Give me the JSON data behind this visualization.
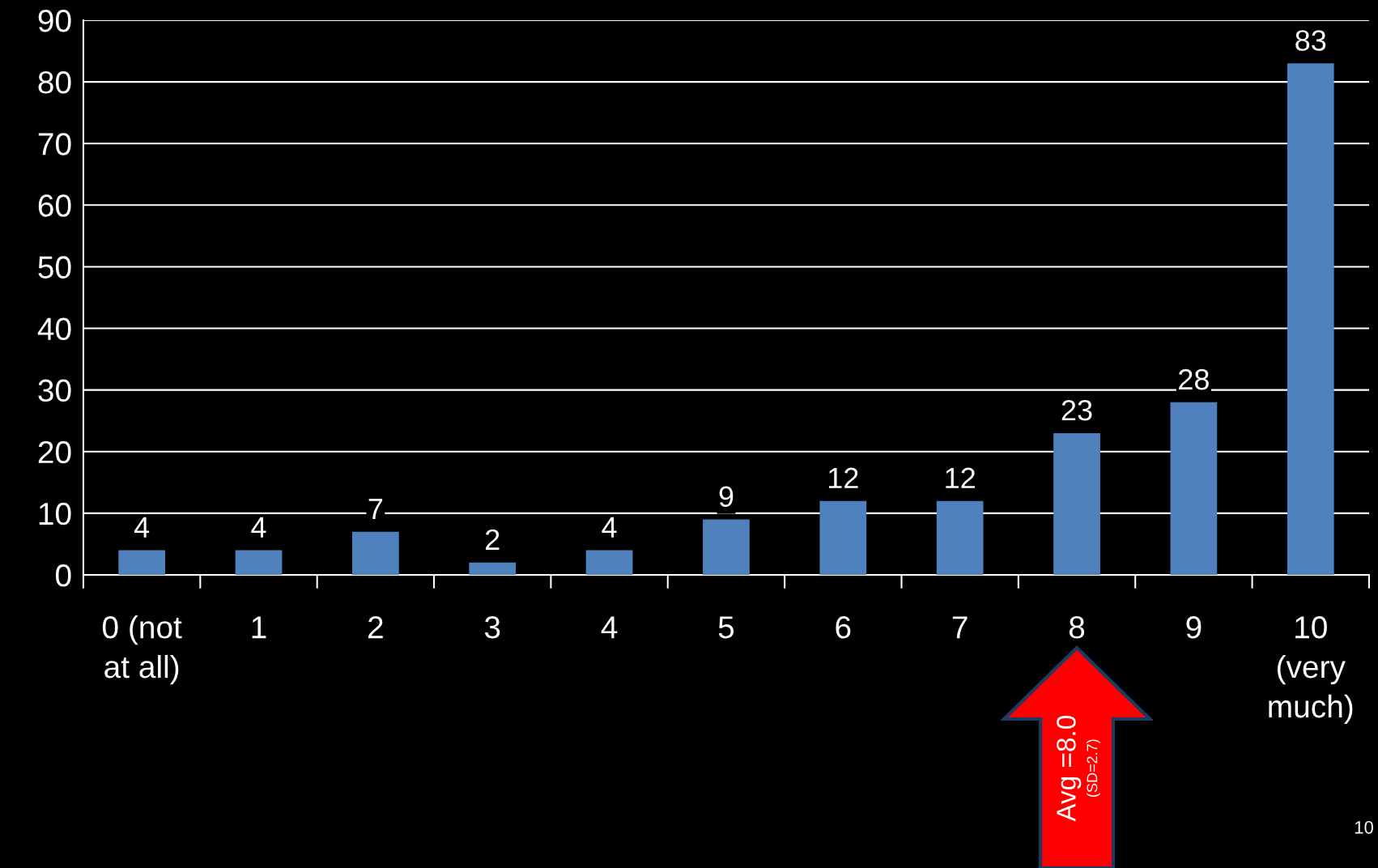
{
  "chart_data": {
    "type": "bar",
    "categories": [
      "0 (not\nat all)",
      "1",
      "2",
      "3",
      "4",
      "5",
      "6",
      "7",
      "8",
      "9",
      "10\n(very\nmuch)"
    ],
    "values": [
      4,
      4,
      7,
      2,
      4,
      9,
      12,
      12,
      23,
      28,
      83
    ],
    "color": "#4f81bd",
    "ylim": [
      0,
      90
    ],
    "yticks": [
      0,
      10,
      20,
      30,
      40,
      50,
      60,
      70,
      80,
      90
    ],
    "grid": "y",
    "data_labels": true,
    "annotations": [
      "Avg =8.0",
      "(SD=2.7)",
      "10"
    ]
  }
}
